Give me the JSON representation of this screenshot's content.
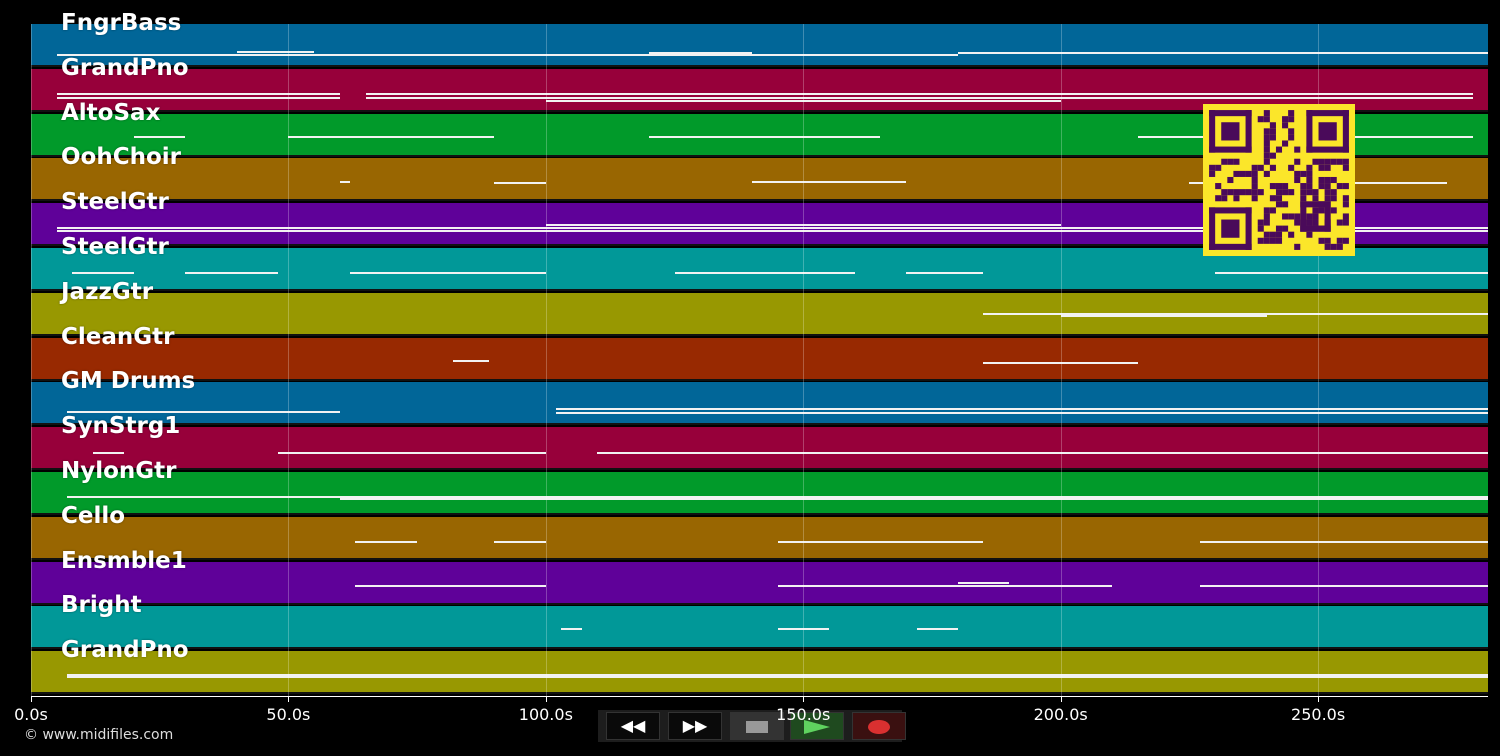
{
  "tracks": [
    {
      "name": "FngrBass",
      "color": "#016698"
    },
    {
      "name": "GrandPno",
      "color": "#97003a"
    },
    {
      "name": "AltoSax",
      "color": "#019a2a"
    },
    {
      "name": "OohChoir",
      "color": "#996601"
    },
    {
      "name": "SteelGtr",
      "color": "#5f0199"
    },
    {
      "name": "SteelGtr",
      "color": "#019898"
    },
    {
      "name": "JazzGtr",
      "color": "#989801"
    },
    {
      "name": "CleanGtr",
      "color": "#982901"
    },
    {
      "name": "GM Drums",
      "color": "#016698"
    },
    {
      "name": "SynStrg1",
      "color": "#97003a"
    },
    {
      "name": "NylonGtr",
      "color": "#019a2a"
    },
    {
      "name": "Cello",
      "color": "#996601"
    },
    {
      "name": "Ensmble1",
      "color": "#5f0199"
    },
    {
      "name": "Bright",
      "color": "#019898"
    },
    {
      "name": "GrandPno",
      "color": "#989801"
    }
  ],
  "timeline": {
    "ticks": [
      "0.0s",
      "50.0s",
      "100.0s",
      "150.0s",
      "200.0s",
      "250.0s"
    ]
  },
  "copyright": "© www.midifiles.com",
  "transport": {
    "rewind_label": "◀◀",
    "forward_label": "▶▶",
    "stop_icon": "stop-icon",
    "play_icon": "play-icon",
    "record_icon": "record-icon"
  },
  "qr_icon": "qr-code-icon"
}
